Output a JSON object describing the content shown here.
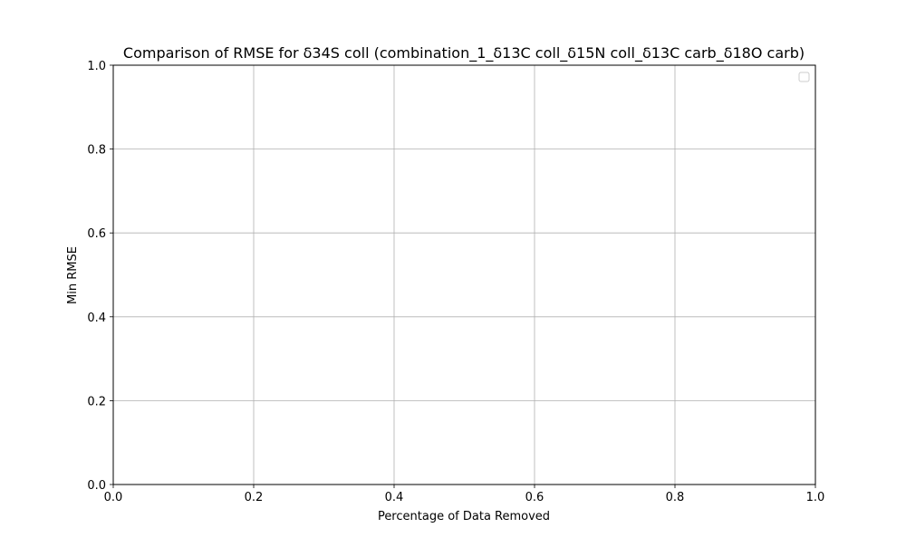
{
  "chart_data": {
    "type": "line",
    "title": "Comparison of RMSE for δ34S coll (combination_1_δ13C coll_δ15N coll_δ13C carb_δ18O carb)",
    "xlabel": "Percentage of Data Removed",
    "ylabel": "Min RMSE",
    "xlim": [
      0.0,
      1.0
    ],
    "ylim": [
      0.0,
      1.0
    ],
    "xticks": [
      0.0,
      0.2,
      0.4,
      0.6,
      0.8,
      1.0
    ],
    "yticks": [
      0.0,
      0.2,
      0.4,
      0.6,
      0.8,
      1.0
    ],
    "xtick_labels": [
      "0.0",
      "0.2",
      "0.4",
      "0.6",
      "0.8",
      "1.0"
    ],
    "ytick_labels": [
      "0.0",
      "0.2",
      "0.4",
      "0.6",
      "0.8",
      "1.0"
    ],
    "grid": true,
    "legend": {
      "placement": "upper right",
      "entries": []
    },
    "series": []
  }
}
